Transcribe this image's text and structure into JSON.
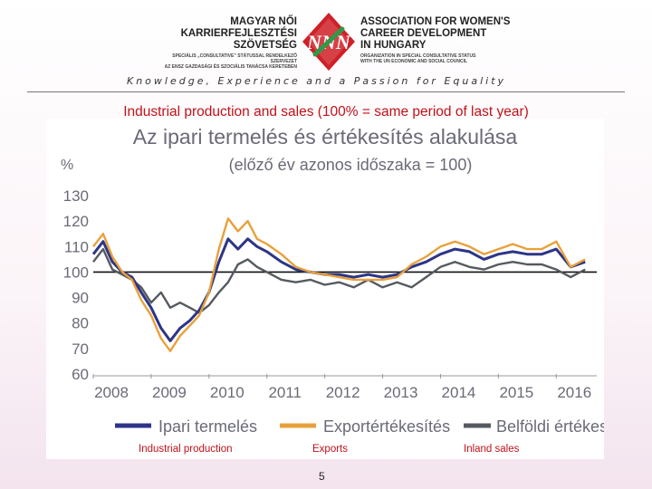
{
  "header": {
    "org_name_hu": [
      "MAGYAR NŐI",
      "KARRIERFEJLESZTÉSI",
      "SZÖVETSÉG"
    ],
    "org_sub_hu": [
      "SPECIÁLIS „CONSULTATIVE” STÁTUSSAL RENDELKEZŐ SZERVEZET",
      "AZ ENSZ GAZDASÁGI ÉS SZOCIÁLIS TANÁCSA KERETEBEN"
    ],
    "org_name_en": [
      "ASSOCIATION FOR WOMEN'S",
      "CAREER DEVELOPMENT",
      "IN HUNGARY"
    ],
    "org_sub_en": [
      "ORGANIZATION IN SPECIAL CONSULTATIVE STATUS",
      "WITH THE UN ECONOMIC AND SOCIAL COUNCIL"
    ],
    "logo_text": "NNN",
    "tagline": "Knowledge, Experience and a Passion for Equality"
  },
  "slide_title": "Industrial production and sales (100% = same period of last year)",
  "legend_translations": {
    "industrial": "Industrial production",
    "exports": "Exports",
    "inland": "Inland sales"
  },
  "page_number": "5",
  "colors": {
    "industrial": "#2c3587",
    "exports": "#e8a13a",
    "inland": "#555a60",
    "title_red": "#c0121a",
    "chart_title": "#6a6a78"
  },
  "chart_data": {
    "type": "line",
    "title": "Az ipari termelés és értékesítés alakulása",
    "subtitle": "(előző év azonos időszaka = 100)",
    "ylabel": "%",
    "ylim": [
      60,
      130
    ],
    "yticks": [
      130,
      120,
      110,
      100,
      90,
      80,
      70,
      60
    ],
    "xlim": [
      2008,
      2016.7
    ],
    "xticks": [
      "2008",
      "2009",
      "2010",
      "2011",
      "2012",
      "2013",
      "2014",
      "2015",
      "2016"
    ],
    "reference_line": 100,
    "series": [
      {
        "name": "Ipari termelés",
        "x": [
          2008.0,
          2008.17,
          2008.33,
          2008.5,
          2008.67,
          2008.83,
          2009.0,
          2009.17,
          2009.33,
          2009.5,
          2009.67,
          2009.83,
          2010.0,
          2010.17,
          2010.33,
          2010.5,
          2010.67,
          2010.83,
          2011.0,
          2011.25,
          2011.5,
          2011.75,
          2012.0,
          2012.25,
          2012.5,
          2012.75,
          2013.0,
          2013.25,
          2013.5,
          2013.75,
          2014.0,
          2014.25,
          2014.5,
          2014.75,
          2015.0,
          2015.25,
          2015.5,
          2015.75,
          2016.0,
          2016.25,
          2016.5
        ],
        "values": [
          107,
          112,
          104,
          100,
          98,
          92,
          86,
          78,
          73,
          78,
          81,
          85,
          92,
          104,
          113,
          109,
          113,
          110,
          108,
          104,
          101,
          100,
          99,
          99,
          98,
          99,
          98,
          99,
          102,
          104,
          107,
          109,
          108,
          105,
          107,
          108,
          107,
          107,
          109,
          102,
          104
        ]
      },
      {
        "name": "Exportértékesítés",
        "x": [
          2008.0,
          2008.17,
          2008.33,
          2008.5,
          2008.67,
          2008.83,
          2009.0,
          2009.17,
          2009.33,
          2009.5,
          2009.67,
          2009.83,
          2010.0,
          2010.17,
          2010.33,
          2010.5,
          2010.67,
          2010.83,
          2011.0,
          2011.25,
          2011.5,
          2011.75,
          2012.0,
          2012.25,
          2012.5,
          2012.75,
          2013.0,
          2013.25,
          2013.5,
          2013.75,
          2014.0,
          2014.25,
          2014.5,
          2014.75,
          2015.0,
          2015.25,
          2015.5,
          2015.75,
          2016.0,
          2016.25,
          2016.5
        ],
        "values": [
          110,
          115,
          106,
          100,
          97,
          89,
          83,
          74,
          69,
          75,
          79,
          83,
          92,
          109,
          121,
          116,
          120,
          113,
          111,
          107,
          102,
          100,
          99,
          98,
          97,
          97,
          97,
          98,
          103,
          106,
          110,
          112,
          110,
          107,
          109,
          111,
          109,
          109,
          112,
          102,
          105
        ]
      },
      {
        "name": "Belföldi értékesítés",
        "x": [
          2008.0,
          2008.17,
          2008.33,
          2008.5,
          2008.67,
          2008.83,
          2009.0,
          2009.17,
          2009.33,
          2009.5,
          2009.67,
          2009.83,
          2010.0,
          2010.17,
          2010.33,
          2010.5,
          2010.67,
          2010.83,
          2011.0,
          2011.25,
          2011.5,
          2011.75,
          2012.0,
          2012.25,
          2012.5,
          2012.75,
          2013.0,
          2013.25,
          2013.5,
          2013.75,
          2014.0,
          2014.25,
          2014.5,
          2014.75,
          2015.0,
          2015.25,
          2015.5,
          2015.75,
          2016.0,
          2016.25,
          2016.5
        ],
        "values": [
          104,
          109,
          101,
          99,
          97,
          94,
          88,
          92,
          86,
          88,
          86,
          84,
          87,
          92,
          96,
          103,
          105,
          102,
          100,
          97,
          96,
          97,
          95,
          96,
          94,
          97,
          94,
          96,
          94,
          98,
          102,
          104,
          102,
          101,
          103,
          104,
          103,
          103,
          101,
          98,
          101
        ]
      }
    ]
  }
}
